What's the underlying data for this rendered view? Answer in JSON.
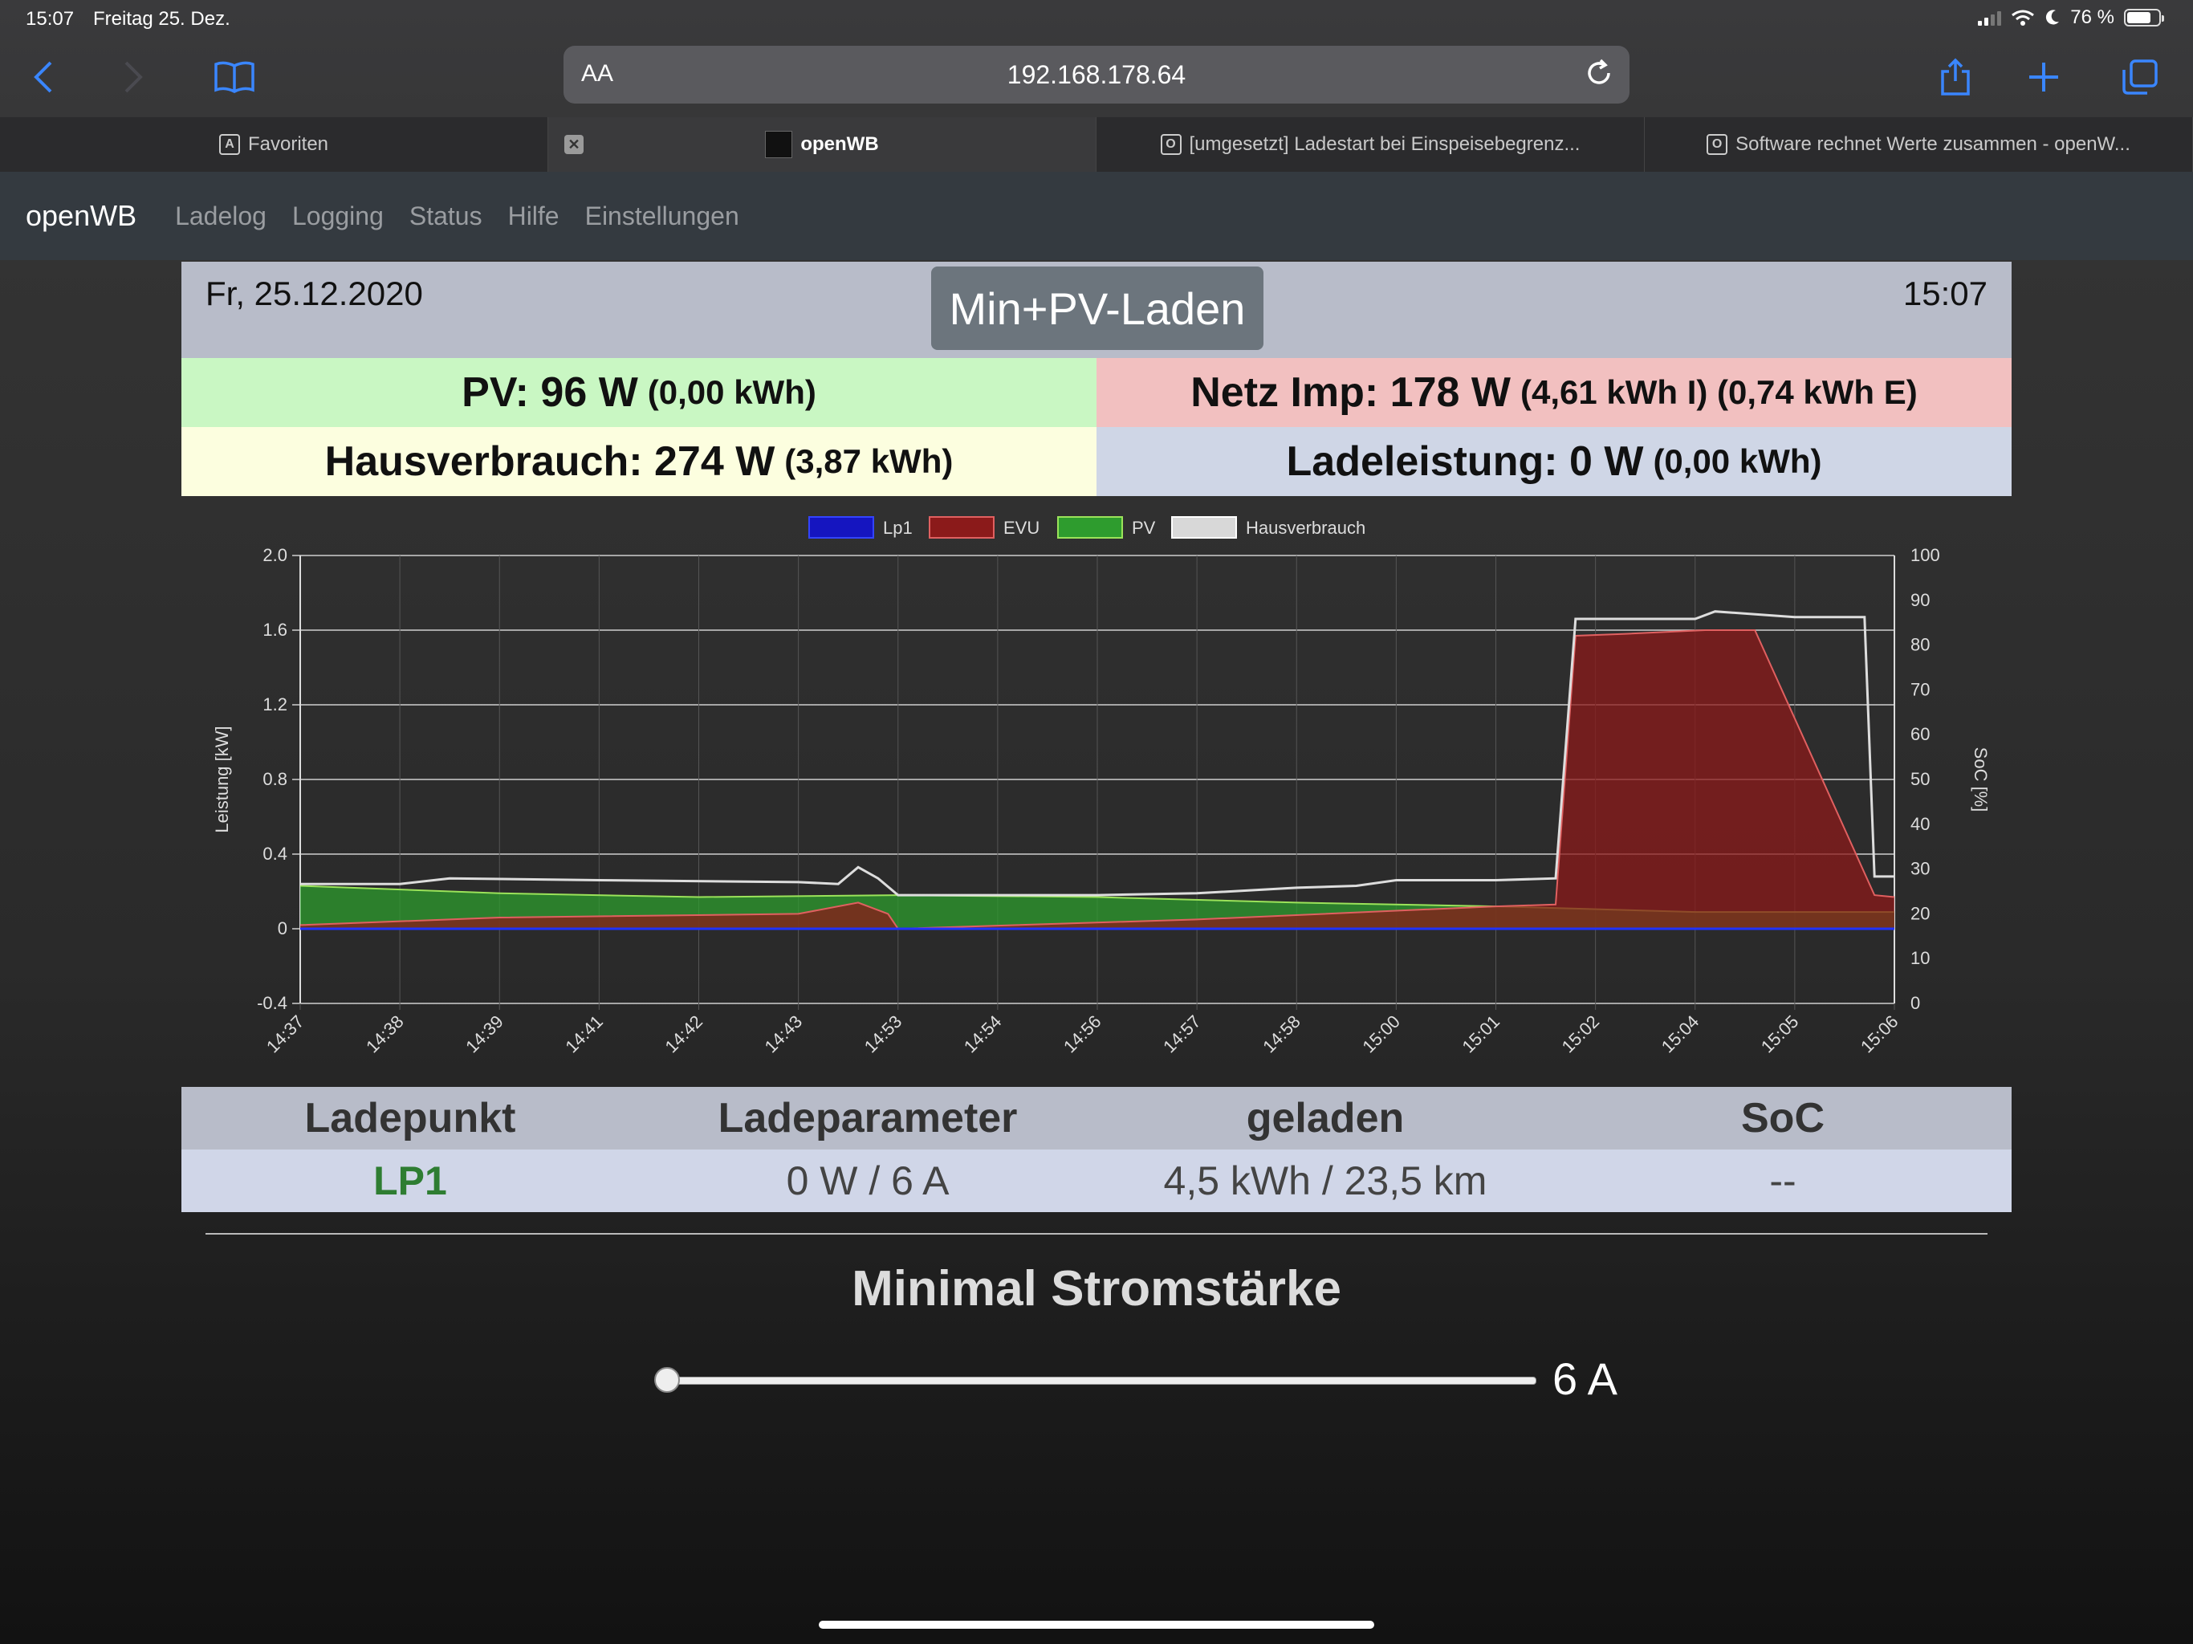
{
  "status_bar": {
    "time": "15:07",
    "date": "Freitag 25. Dez.",
    "battery": "76 %",
    "battery_level": 0.76
  },
  "browser": {
    "aa_label": "AA",
    "url": "192.168.178.64",
    "tabs": [
      {
        "label": "Favoriten",
        "icon": "A"
      },
      {
        "label": "openWB",
        "active": true
      },
      {
        "label": "[umgesetzt] Ladestart bei Einspeisebegrenz...",
        "icon": "O"
      },
      {
        "label": "Software rechnet Werte zusammen - openW...",
        "icon": "O"
      }
    ]
  },
  "nav": {
    "brand": "openWB",
    "links": [
      "Ladelog",
      "Logging",
      "Status",
      "Hilfe",
      "Einstellungen"
    ]
  },
  "header": {
    "date": "Fr, 25.12.2020",
    "mode": "Min+PV-Laden",
    "time": "15:07"
  },
  "stats": {
    "pv": {
      "label": "PV: 96 W",
      "sub": "(0,00 kWh)"
    },
    "netz": {
      "label": "Netz Imp: 178 W",
      "sub": "(4,61 kWh I) (0,74 kWh E)"
    },
    "haus": {
      "label": "Hausverbrauch: 274 W",
      "sub": "(3,87 kWh)"
    },
    "lade": {
      "label": "Ladeleistung: 0 W",
      "sub": "(0,00 kWh)"
    }
  },
  "chart_data": {
    "type": "area",
    "ylabel": "Leistung [kW]",
    "y2label": "SoC [%]",
    "ylim": [
      -0.4,
      2.0
    ],
    "y2lim": [
      0,
      100
    ],
    "yticks": [
      "2.0",
      "1.6",
      "1.2",
      "0.8",
      "0.4",
      "0",
      "-0.4"
    ],
    "y2ticks": [
      "100",
      "90",
      "80",
      "70",
      "60",
      "50",
      "40",
      "30",
      "20",
      "10",
      "0"
    ],
    "xticks": [
      "14:37",
      "14:38",
      "14:39",
      "14:41",
      "14:42",
      "14:43",
      "14:53",
      "14:54",
      "14:56",
      "14:57",
      "14:58",
      "15:00",
      "15:01",
      "15:02",
      "15:04",
      "15:05",
      "15:06"
    ],
    "legend_position": "top",
    "colors": {
      "Lp1": "#0000cc",
      "EVU": "#8b1a1a",
      "PV": "#2e9c2e",
      "Hausverbrauch": "#dddddd"
    },
    "series": [
      {
        "name": "Lp1",
        "x": [
          0,
          16
        ],
        "values": [
          0,
          0
        ]
      },
      {
        "name": "EVU",
        "x": [
          0,
          2,
          5,
          5.6,
          5.9,
          6,
          9,
          12,
          12.6,
          12.8,
          13.3,
          14.1,
          14.6,
          15.8,
          16
        ],
        "values": [
          0.02,
          0.06,
          0.08,
          0.14,
          0.08,
          0.0,
          0.05,
          0.12,
          0.13,
          1.57,
          1.58,
          1.6,
          1.6,
          0.18,
          0.17
        ]
      },
      {
        "name": "PV",
        "x": [
          0,
          2,
          4,
          6,
          8,
          10,
          12,
          14,
          16
        ],
        "values": [
          0.23,
          0.19,
          0.17,
          0.18,
          0.17,
          0.14,
          0.12,
          0.09,
          0.09
        ]
      },
      {
        "name": "Hausverbrauch",
        "x": [
          0,
          1,
          1.5,
          3,
          5,
          5.4,
          5.6,
          5.8,
          6,
          8,
          9,
          10,
          10.6,
          11,
          11.4,
          12,
          12.6,
          12.8,
          14,
          14.2,
          15,
          15.7,
          15.8,
          16
        ],
        "values": [
          0.24,
          0.24,
          0.27,
          0.26,
          0.25,
          0.24,
          0.33,
          0.27,
          0.18,
          0.18,
          0.19,
          0.22,
          0.23,
          0.26,
          0.26,
          0.26,
          0.27,
          1.66,
          1.66,
          1.7,
          1.67,
          1.67,
          0.28,
          0.28
        ]
      }
    ]
  },
  "ladepunkt_table": {
    "headers": [
      "Ladepunkt",
      "Ladeparameter",
      "geladen",
      "SoC"
    ],
    "rows": [
      [
        "LP1",
        "0 W / 6 A",
        "4,5 kWh / 23,5 km",
        "--"
      ]
    ]
  },
  "min_current": {
    "heading": "Minimal Stromstärke",
    "value": "6 A",
    "level": 0
  }
}
